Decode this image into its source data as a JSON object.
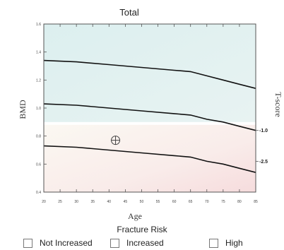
{
  "chart_data": {
    "type": "line",
    "title": "Total",
    "xlabel": "Age",
    "ylabel": "BMD",
    "y2label": "T-score",
    "xlim": [
      20,
      85
    ],
    "ylim": [
      0.4,
      1.6
    ],
    "x_ticks": [
      20,
      25,
      30,
      35,
      40,
      45,
      50,
      55,
      60,
      65,
      70,
      75,
      80,
      85
    ],
    "y_ticks": [
      0.4,
      0.6,
      0.8,
      1.0,
      1.2,
      1.4,
      1.6
    ],
    "y_tick_labels": [
      "0.4",
      "0.6",
      "0.8",
      "1.0",
      "1.2",
      "1.4",
      "1.6"
    ],
    "series": [
      {
        "x": [
          20,
          30,
          40,
          50,
          60,
          65,
          70,
          75,
          80,
          85
        ],
        "values": [
          1.34,
          1.33,
          1.31,
          1.29,
          1.27,
          1.26,
          1.23,
          1.2,
          1.17,
          1.14
        ]
      },
      {
        "x": [
          20,
          30,
          40,
          50,
          60,
          65,
          70,
          75,
          80,
          85
        ],
        "values": [
          1.03,
          1.02,
          1.0,
          0.98,
          0.96,
          0.95,
          0.92,
          0.9,
          0.87,
          0.84
        ]
      },
      {
        "x": [
          20,
          30,
          40,
          50,
          60,
          65,
          70,
          75,
          80,
          85
        ],
        "values": [
          0.73,
          0.72,
          0.7,
          0.68,
          0.66,
          0.65,
          0.62,
          0.6,
          0.57,
          0.54
        ]
      }
    ],
    "tscore_labels": [
      {
        "label": "-1.0",
        "y": 0.84
      },
      {
        "label": "-2.5",
        "y": 0.62
      }
    ],
    "marker": {
      "x": 42,
      "y": 0.77,
      "symbol": "crosshair-circle"
    },
    "regions": {
      "top_color": "#e2f1f1",
      "middle_color": "#fbf9f4",
      "bottom_color": "#f8e4e4"
    }
  },
  "legend": {
    "title": "Fracture Risk",
    "items": [
      "Not Increased",
      "Increased",
      "High"
    ]
  }
}
